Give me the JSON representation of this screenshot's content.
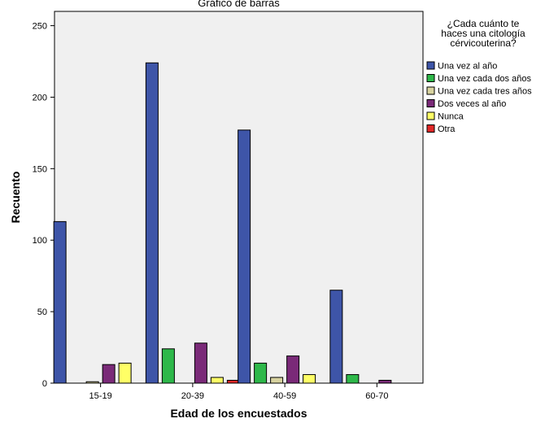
{
  "chart_data": {
    "type": "bar",
    "title": "Gráfico de barras",
    "xlabel": "Edad de los encuestados",
    "ylabel": "Recuento",
    "ylim": [
      0,
      260
    ],
    "yticks": [
      0,
      50,
      100,
      150,
      200,
      250
    ],
    "categories": [
      "15-19",
      "20-39",
      "40-59",
      "60-70"
    ],
    "legend_title": "¿Cada cuánto te haces una citología cérvicouterina?",
    "legend_title_lines": [
      "¿Cada cuánto te",
      "haces una citología",
      "cérvicouterina?"
    ],
    "legend_position": "right",
    "grid": false,
    "series": [
      {
        "name": "Una vez al año",
        "color": "#3e55a8",
        "values": [
          113,
          224,
          177,
          65
        ]
      },
      {
        "name": "Una vez cada dos años",
        "color": "#2eb84a",
        "values": [
          0,
          24,
          14,
          6
        ]
      },
      {
        "name": "Una vez cada tres años",
        "color": "#d8d3a0",
        "values": [
          1,
          0,
          4,
          0
        ]
      },
      {
        "name": "Dos veces al año",
        "color": "#7a2a78",
        "values": [
          13,
          28,
          19,
          2
        ]
      },
      {
        "name": "Nunca",
        "color": "#ffff66",
        "values": [
          14,
          4,
          6,
          0
        ]
      },
      {
        "name": "Otra",
        "color": "#e02828",
        "values": [
          0,
          2,
          0,
          0
        ]
      }
    ],
    "plot_background": "#f0f0f0"
  }
}
